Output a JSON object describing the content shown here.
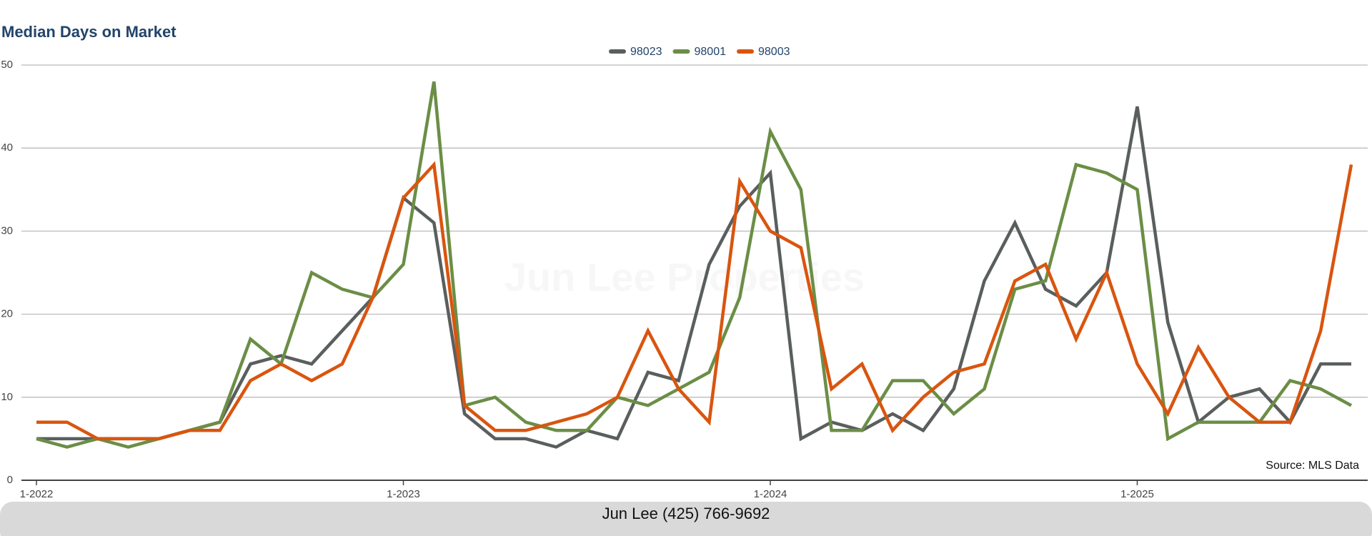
{
  "chart_data": {
    "type": "line",
    "title": "Median Days on Market",
    "watermark": "Jun Lee Properties",
    "source": "Source: MLS Data",
    "footer": "Jun Lee (425) 766-9692",
    "categories": [
      "1-2022",
      null,
      null,
      null,
      null,
      null,
      null,
      null,
      null,
      null,
      null,
      null,
      "1-2023",
      null,
      null,
      null,
      null,
      null,
      null,
      null,
      null,
      null,
      null,
      null,
      "1-2024",
      null,
      null,
      null,
      null,
      null,
      null,
      null,
      null,
      null,
      null,
      null,
      "1-2025",
      null,
      null,
      null,
      null,
      null,
      null,
      null
    ],
    "series": [
      {
        "name": "98023",
        "color": "#5a5f5e",
        "values": [
          5,
          5,
          5,
          5,
          5,
          6,
          7,
          14,
          15,
          14,
          18,
          22,
          34,
          31,
          8,
          5,
          5,
          4,
          6,
          5,
          13,
          12,
          26,
          33,
          37,
          5,
          7,
          6,
          8,
          6,
          11,
          24,
          31,
          23,
          21,
          25,
          45,
          19,
          7,
          10,
          11,
          7,
          14,
          14
        ]
      },
      {
        "name": "98001",
        "color": "#6b8e46",
        "values": [
          5,
          4,
          5,
          4,
          5,
          6,
          7,
          17,
          14,
          25,
          23,
          22,
          26,
          48,
          9,
          10,
          7,
          6,
          6,
          10,
          9,
          11,
          13,
          22,
          42,
          35,
          6,
          6,
          12,
          12,
          8,
          11,
          23,
          24,
          38,
          37,
          35,
          5,
          7,
          7,
          7,
          12,
          11,
          9
        ]
      },
      {
        "name": "98003",
        "color": "#d9550f",
        "values": [
          7,
          7,
          5,
          5,
          5,
          6,
          6,
          12,
          14,
          12,
          14,
          22,
          34,
          38,
          9,
          6,
          6,
          7,
          8,
          10,
          18,
          11,
          7,
          36,
          30,
          28,
          11,
          14,
          6,
          10,
          13,
          14,
          24,
          26,
          17,
          25,
          14,
          8,
          16,
          10,
          7,
          7,
          18,
          38
        ]
      }
    ],
    "ylim": [
      0,
      50
    ],
    "yticks": [
      0,
      10,
      20,
      30,
      40,
      50
    ],
    "grid": true
  }
}
